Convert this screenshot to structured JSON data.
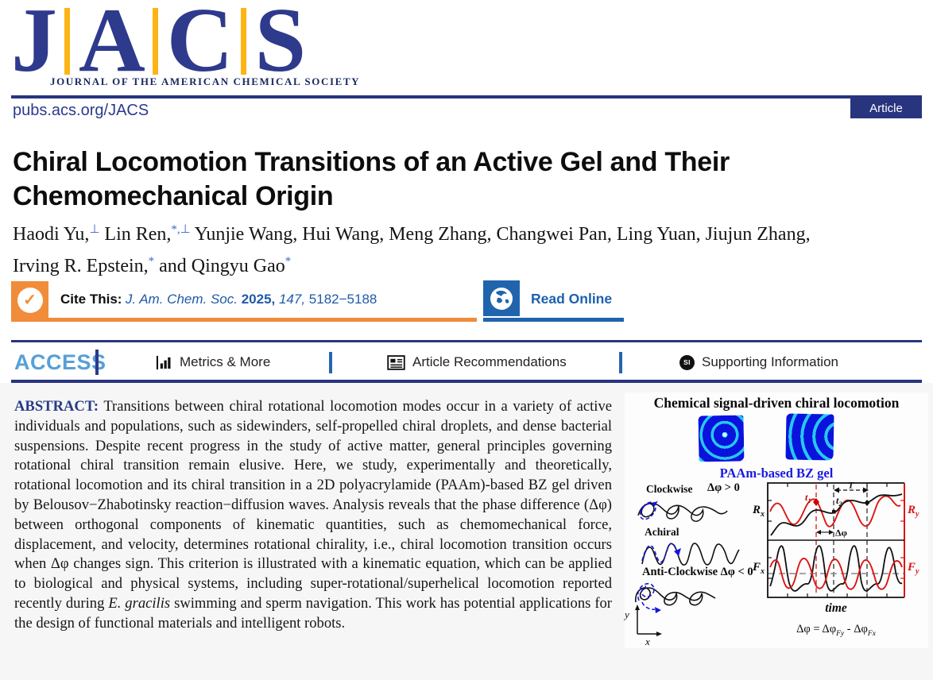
{
  "header": {
    "logo_letters": [
      "J",
      "A",
      "C",
      "S"
    ],
    "logo_subtitle": "JOURNAL OF THE AMERICAN CHEMICAL SOCIETY",
    "site_url": "pubs.acs.org/JACS",
    "badge": "Article"
  },
  "article": {
    "title_lines": [
      "Chiral Locomotion Transitions of an Active Gel and Their",
      "Chemomechanical Origin"
    ],
    "authors_line1": [
      {
        "t": "Haodi Yu,"
      },
      {
        "sup": "⊥"
      },
      {
        "t": " Lin Ren,"
      },
      {
        "sup": "*,⊥"
      },
      {
        "t": " Yunjie Wang, Hui Wang, Meng Zhang, Changwei Pan, Ling Yuan, Jiujun Zhang,"
      }
    ],
    "authors_line2": [
      {
        "t": "Irving R. Epstein,"
      },
      {
        "sup": "*"
      },
      {
        "t": " and Qingyu Gao"
      },
      {
        "sup": "*"
      }
    ]
  },
  "cite": {
    "label": "Cite This:",
    "check_glyph": "✓",
    "reference": [
      {
        "t": "J. Am. Chem. Soc. ",
        "style": "italic"
      },
      {
        "t": "2025, ",
        "style": "bold"
      },
      {
        "t": "147,",
        "style": "italic"
      },
      {
        "t": " 5182−5188"
      }
    ],
    "read_online": "Read Online"
  },
  "nav": {
    "access": "ACCESS",
    "metrics": "Metrics & More",
    "recommendations": "Article Recommendations",
    "supporting": "Supporting Information",
    "si_badge": "SI"
  },
  "abstract": {
    "label": "ABSTRACT:",
    "segments": [
      {
        "t": " Transitions between chiral rotational locomotion modes occur in a variety of active individuals and populations, such as sidewinders, self-propelled chiral droplets, and dense bacterial suspensions. Despite recent progress in the study of active matter, general principles governing rotational chiral transition remain elusive. Here, we study, experimentally and theoretically, rotational locomotion and its chiral transition in a 2D polyacrylamide (PAAm)-based BZ gel driven by Belousov−Zhabotinsky reaction−diffusion waves. Analysis reveals that the phase difference (Δφ) between orthogonal components of kinematic quantities, such as chemomechanical force, displacement, and velocity, determines rotational chirality, i.e., chiral locomotion transition occurs when Δφ changes sign. This criterion is illustrated with a kinematic equation, which can be applied to biological and physical systems, including super-rotational/superhelical locomotion reported recently during "
      },
      {
        "t": "E. gracilis",
        "style": "italic"
      },
      {
        "t": " swimming and sperm navigation. This work has potential applications for the design of functional materials and intelligent robots."
      }
    ]
  },
  "figure": {
    "title": "Chemical signal-driven chiral locomotion",
    "gel_caption": "PAAm-based BZ gel",
    "clockwise_label": "Clockwise",
    "clockwise_condition": "Δφ > 0",
    "achiral_label": "Achiral",
    "anticlockwise_label": "Anti-Clockwise Δφ < 0",
    "axis_y": "y",
    "axis_x": "x",
    "plot": {
      "t1_base": "t",
      "t1_sub": "1",
      "t2_base": "t",
      "t2_sub": "2",
      "period_label": "T",
      "phase_label": "Δφ",
      "left_top_base": "R",
      "left_top_sub": "x",
      "right_top_base": "R",
      "right_top_sub": "y",
      "left_bottom_base": "F",
      "left_bottom_sub": "x",
      "right_bottom_base": "F",
      "right_bottom_sub": "y",
      "x_axis_label": "time",
      "formula": [
        {
          "t": "Δφ = Δφ"
        },
        {
          "sub": "Fy"
        },
        {
          "t": " - Δφ"
        },
        {
          "sub": "Fx"
        }
      ]
    }
  },
  "colors": {
    "navy": "#28357e",
    "logo_navy": "#2e3a8c",
    "gold": "#fdb515",
    "access_blue": "#55a0d8",
    "link_blue": "#1f5aa8",
    "orange": "#f08c3a",
    "read_blue": "#2064ae",
    "figure_red": "#dd1515",
    "figure_blue": "#1515e0",
    "gel_blue": "#0a12dd",
    "gel_cyan": "#25c8f0"
  }
}
